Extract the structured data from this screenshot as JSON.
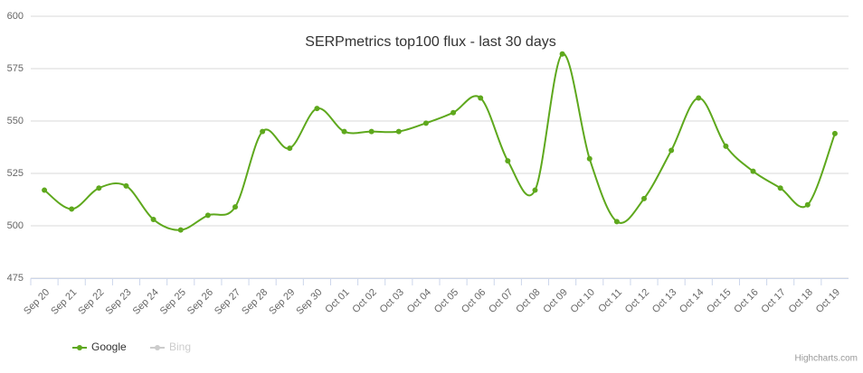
{
  "chart_data": {
    "type": "spline",
    "title": "SERPmetrics top100 flux - last 30 days",
    "categories": [
      "Sep 20",
      "Sep 21",
      "Sep 22",
      "Sep 23",
      "Sep 24",
      "Sep 25",
      "Sep 26",
      "Sep 27",
      "Sep 28",
      "Sep 29",
      "Sep 30",
      "Oct 01",
      "Oct 02",
      "Oct 03",
      "Oct 04",
      "Oct 05",
      "Oct 06",
      "Oct 07",
      "Oct 08",
      "Oct 09",
      "Oct 10",
      "Oct 11",
      "Oct 12",
      "Oct 13",
      "Oct 14",
      "Oct 15",
      "Oct 16",
      "Oct 17",
      "Oct 18",
      "Oct 19"
    ],
    "series": [
      {
        "name": "Google",
        "color": "#5ea81d",
        "visible": true,
        "values": [
          517,
          508,
          518,
          519,
          503,
          498,
          505,
          509,
          545,
          537,
          556,
          545,
          545,
          545,
          549,
          554,
          561,
          531,
          517,
          582,
          532,
          502,
          513,
          536,
          561,
          538,
          526,
          518,
          510,
          544
        ]
      },
      {
        "name": "Bing",
        "color": "#cccccc",
        "visible": false,
        "values": [
          null,
          null,
          null,
          null,
          null,
          null,
          null,
          null,
          null,
          null,
          null,
          null,
          null,
          null,
          null,
          null,
          null,
          null,
          null,
          null,
          null,
          null,
          null,
          null,
          null,
          null,
          null,
          null,
          null,
          null
        ]
      }
    ],
    "ylim": [
      475,
      600
    ],
    "yticks": [
      475,
      500,
      525,
      550,
      575,
      600
    ],
    "grid": true,
    "credits": "Highcharts.com"
  }
}
